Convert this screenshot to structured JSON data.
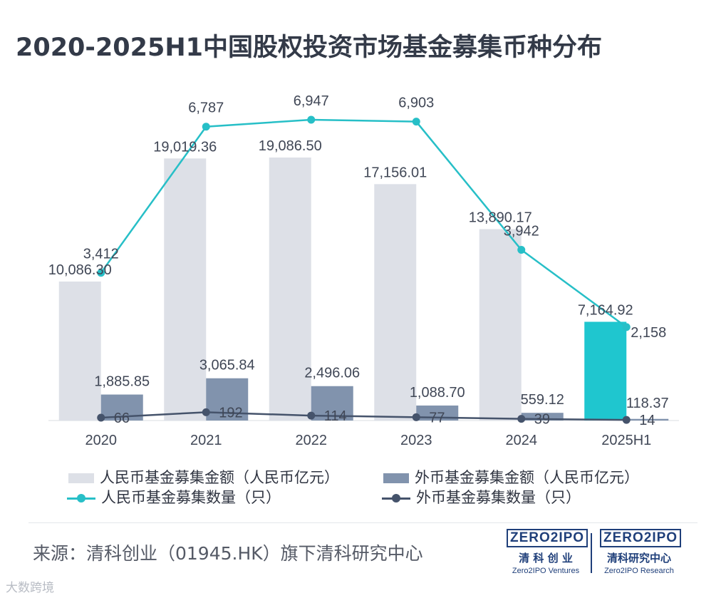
{
  "title": "2020-2025H1中国股权投资市场基金募集币种分布",
  "chart_data": {
    "type": "bar",
    "categories": [
      "2020",
      "2021",
      "2022",
      "2023",
      "2024",
      "2025H1"
    ],
    "series": [
      {
        "name": "人民币基金募集金额（人民币亿元）",
        "kind": "bar",
        "axis": "left",
        "values": [
          10086.3,
          19019.36,
          19086.5,
          17156.01,
          13890.17,
          7164.92
        ],
        "labels": [
          "10,086.30",
          "19,019.36",
          "19,086.50",
          "17,156.01",
          "13,890.17",
          "7,164.92"
        ]
      },
      {
        "name": "外币基金募集金额（人民币亿元）",
        "kind": "bar",
        "axis": "left",
        "values": [
          1885.85,
          3065.84,
          2496.06,
          1088.7,
          559.12,
          118.37
        ],
        "labels": [
          "1,885.85",
          "3,065.84",
          "2,496.06",
          "1,088.70",
          "559.12",
          "118.37"
        ]
      },
      {
        "name": "人民币基金募集数量（只）",
        "kind": "line",
        "axis": "right",
        "values": [
          3412,
          6787,
          6947,
          6903,
          3942,
          2158
        ],
        "labels": [
          "3,412",
          "6,787",
          "6,947",
          "6,903",
          "3,942",
          "2,158"
        ]
      },
      {
        "name": "外币基金募集数量（只）",
        "kind": "line",
        "axis": "right",
        "values": [
          66,
          192,
          114,
          77,
          39,
          14
        ],
        "labels": [
          "66",
          "192",
          "114",
          "77",
          "39",
          "14"
        ]
      }
    ],
    "colors": {
      "rmb_bar": "#dde0e7",
      "rmb_bar_highlight": "#1fc6cf",
      "fx_bar": "#8193ad",
      "rmb_line": "#27bfc7",
      "fx_line": "#45536b",
      "label_text": "#404756"
    },
    "ylim_left": [
      0,
      25000
    ],
    "ylim_right": [
      0,
      8000
    ],
    "grid": false,
    "legend_position": "bottom"
  },
  "source": "来源：清科创业（01945.HK）旗下清科研究中心",
  "logos": {
    "ventures": {
      "mark": "ZERO2IPO",
      "cn": "清 科 创 业",
      "en": "Zero2IPO Ventures"
    },
    "research": {
      "mark": "ZERO2IPO",
      "cn": "清科研究中心",
      "en": "Zero2IPO Research"
    }
  },
  "watermark": "大数跨境"
}
